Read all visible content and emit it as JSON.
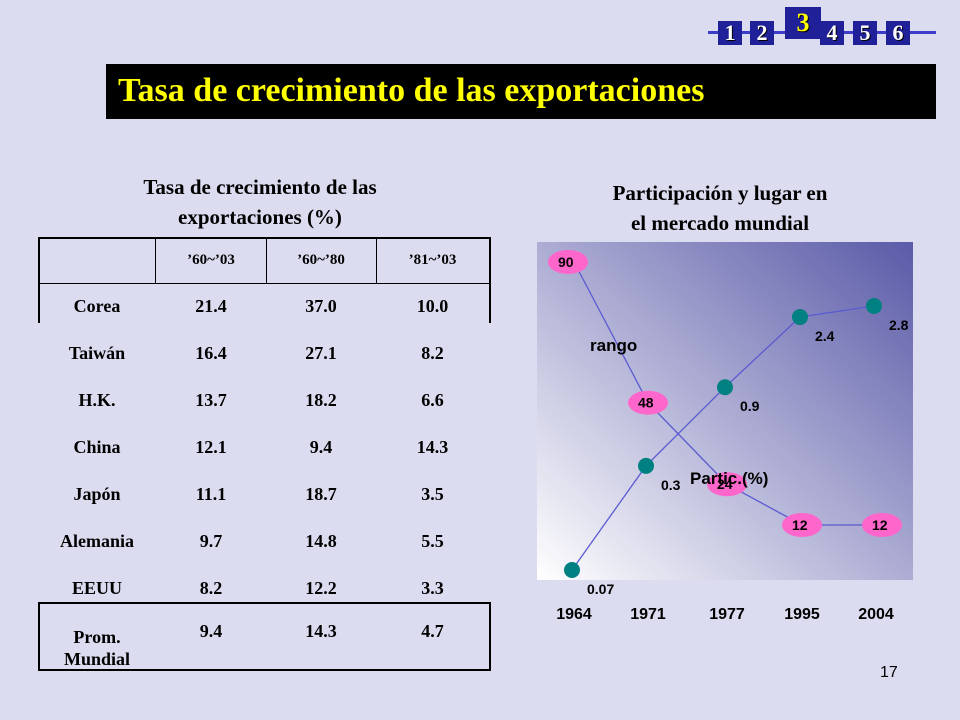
{
  "nav": {
    "items": [
      "1",
      "2",
      "4",
      "5",
      "6"
    ],
    "active": "3"
  },
  "title": "Tasa de crecimiento  de las exportaciones",
  "table": {
    "caption_line1": "Tasa de crecimiento de las",
    "caption_line2": "exportaciones (%)",
    "columns": [
      "",
      "’60~’03",
      "’60~’80",
      "’81~’03"
    ],
    "rows": [
      [
        "Corea",
        "21.4",
        "37.0",
        "10.0"
      ],
      [
        "Taiwán",
        "16.4",
        "27.1",
        "8.2"
      ],
      [
        "H.K.",
        "13.7",
        "18.2",
        "6.6"
      ],
      [
        "China",
        "12.1",
        "9.4",
        "14.3"
      ],
      [
        "Japón",
        "11.1",
        "18.7",
        "3.5"
      ],
      [
        "Alemania",
        "9.7",
        "14.8",
        "5.5"
      ],
      [
        "EEUU",
        "8.2",
        "12.2",
        "3.3"
      ]
    ],
    "average": {
      "label_line1": "Prom.",
      "label_line2": "Mundial",
      "values": [
        "9.4",
        "14.3",
        "4.7"
      ]
    }
  },
  "chart_data": {
    "type": "line",
    "title_line1": "Participación y lugar en",
    "title_line2": "el mercado mundial",
    "categories": [
      "1964",
      "1971",
      "1977",
      "1995",
      "2004"
    ],
    "series": [
      {
        "name": "rango",
        "values": [
          90,
          48,
          24,
          12,
          12
        ],
        "labels": [
          "90",
          "48",
          "24",
          "12",
          "12"
        ],
        "marker_color": "#ff66cc"
      },
      {
        "name": "Partic.(%)",
        "values": [
          0.07,
          0.3,
          0.9,
          2.4,
          2.8
        ],
        "labels": [
          "0.07",
          "0.3",
          "0.9",
          "2.4",
          "2.8"
        ],
        "marker_color": "#008080"
      }
    ],
    "plot_background": [
      "#ffffff",
      "#5a5aa8"
    ]
  },
  "page_number": "17"
}
